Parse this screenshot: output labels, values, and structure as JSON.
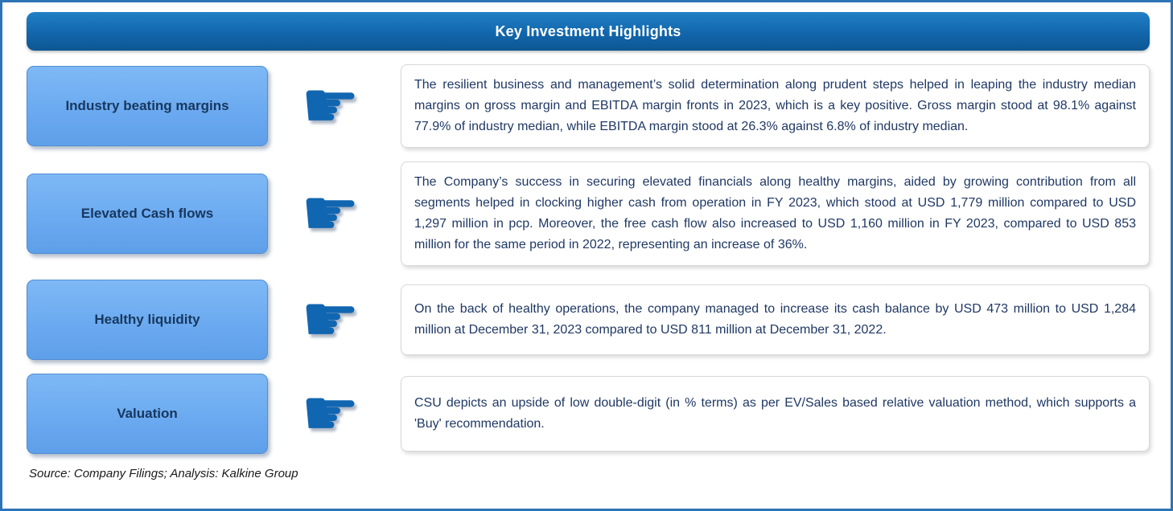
{
  "header": {
    "title": "Key Investment Highlights"
  },
  "rows": [
    {
      "label": "Industry beating margins",
      "text": "The resilient business and management’s solid determination along prudent steps helped in leaping the industry median margins on gross margin and EBITDA margin fronts in 2023, which is a key positive. Gross margin stood at 98.1% against 77.9% of industry median, while EBITDA margin stood at 26.3% against 6.8% of industry median."
    },
    {
      "label": "Elevated Cash flows",
      "text": "The Company’s success in securing elevated financials along healthy margins, aided by growing contribution from all segments helped in clocking higher cash from operation in FY 2023, which stood at USD 1,779 million compared to USD 1,297 million in pcp. Moreover, the free cash flow also increased to USD 1,160 million in FY 2023, compared to USD 853 million for the same period in 2022, representing an increase of 36%."
    },
    {
      "label": "Healthy liquidity",
      "text": "On the back of healthy operations, the company managed to increase its cash balance by USD 473 million to USD 1,284 million at December 31, 2023 compared to USD 811 million at December 31, 2022."
    },
    {
      "label": "Valuation",
      "text": "CSU depicts an upside of low double-digit (in % terms) as per EV/Sales based relative valuation method, which supports a 'Buy' recommendation."
    }
  ],
  "footer": {
    "source": "Source: Company Filings; Analysis: Kalkine Group"
  },
  "icons": {
    "pointing_hand": "☛"
  },
  "colors": {
    "frame_border": "#2E74B5",
    "header_bg_top": "#2180C6",
    "header_bg_bottom": "#0D5793",
    "label_fill": "#6AA9F0",
    "label_text": "#17375E",
    "body_text": "#1F3864",
    "hand_blue": "#1166B1"
  }
}
